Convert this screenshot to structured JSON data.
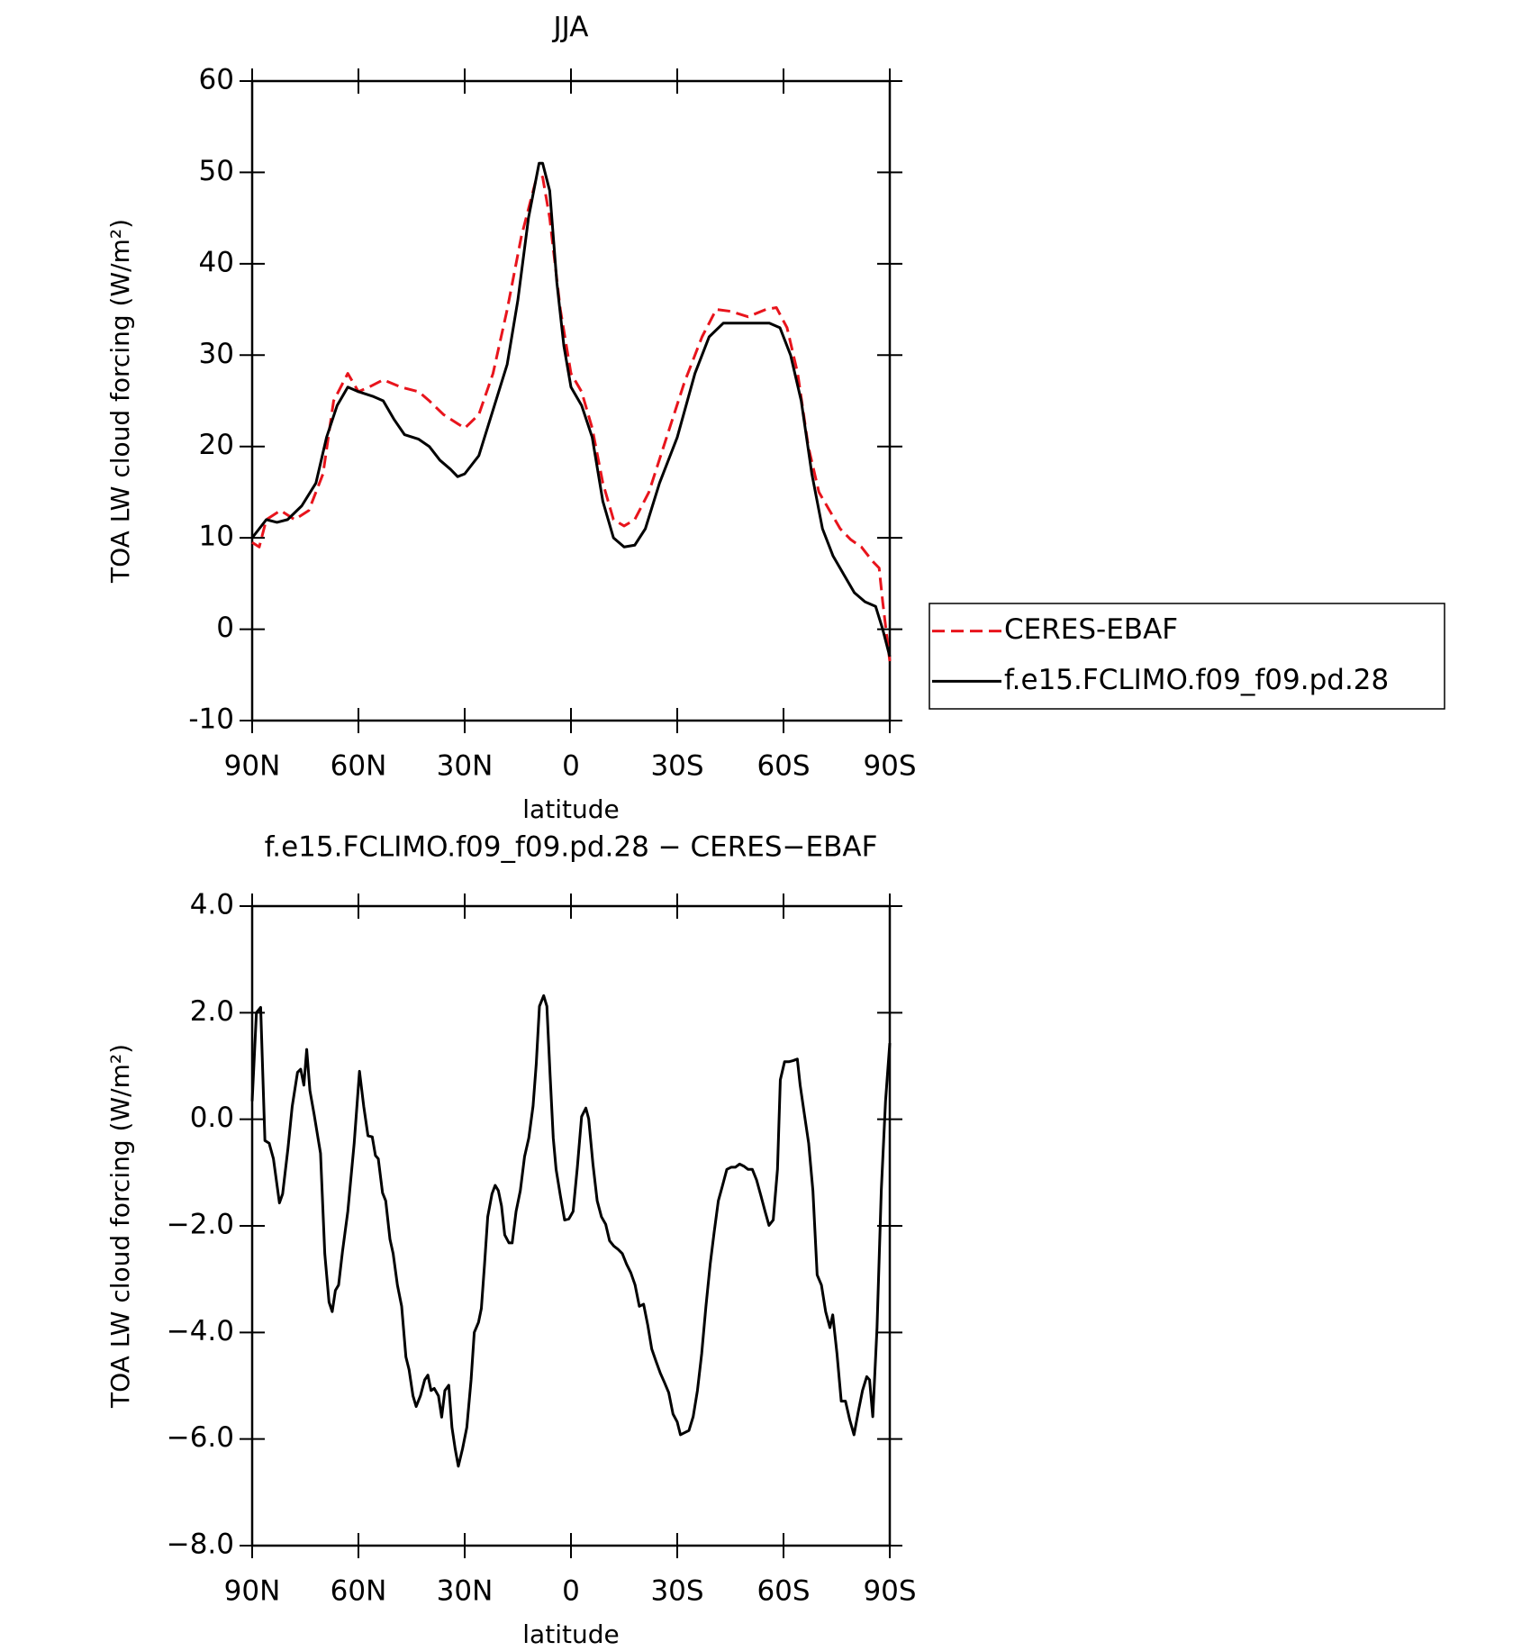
{
  "chart_data": [
    {
      "type": "line",
      "title": "JJA",
      "xlabel": "latitude",
      "ylabel": "TOA LW cloud forcing (W/m²)",
      "xlim": [
        90,
        -90
      ],
      "xticks": [
        {
          "value": 90,
          "label": "90N"
        },
        {
          "value": 60,
          "label": "60N"
        },
        {
          "value": 30,
          "label": "30N"
        },
        0,
        {
          "value": -30,
          "label": "30S"
        },
        {
          "value": -60,
          "label": "60S"
        },
        {
          "value": -90,
          "label": "90S"
        }
      ],
      "ylim": [
        -10,
        60
      ],
      "yticks": [
        -10,
        0,
        10,
        20,
        30,
        40,
        50,
        60
      ],
      "legend": "right",
      "series": [
        {
          "name": "CERES-EBAF",
          "color": "#e8141c",
          "dash": true,
          "x": [
            90,
            88,
            86,
            82,
            78,
            74,
            70,
            67,
            63,
            60,
            57,
            53,
            48,
            43,
            40,
            36,
            30,
            26,
            22,
            18,
            14,
            10,
            8,
            6,
            3,
            0,
            -3,
            -6,
            -9,
            -12,
            -15,
            -18,
            -22,
            -27,
            -32,
            -37,
            -41,
            -45,
            -50,
            -55,
            -58,
            -61,
            -64,
            -67,
            -70,
            -73,
            -76,
            -79,
            -82,
            -85,
            -87,
            -88,
            -90
          ],
          "values": [
            9.5,
            9,
            12,
            13,
            12,
            13,
            17,
            25,
            28,
            26,
            26.5,
            27.3,
            26.5,
            26,
            25,
            23.5,
            22,
            23.5,
            28,
            35,
            43,
            49,
            49.5,
            45,
            35,
            28,
            26,
            22,
            16,
            12,
            11.3,
            12,
            15,
            21,
            27,
            32,
            35,
            34.8,
            34.2,
            35,
            35.2,
            33,
            28,
            20,
            15,
            13,
            11,
            9.8,
            9,
            7.5,
            6.7,
            3,
            -3.5
          ]
        },
        {
          "name": "f.e15.FCLIMO.f09_f09.pd.28",
          "color": "#000000",
          "dash": false,
          "x": [
            90,
            88,
            86,
            83,
            80,
            76,
            72,
            69,
            66,
            63,
            60,
            56,
            53,
            50,
            47,
            43,
            40,
            37,
            34,
            32,
            30,
            26,
            22,
            18,
            15,
            12,
            9,
            8,
            6,
            4,
            2,
            0,
            -3,
            -6,
            -9,
            -12,
            -15,
            -18,
            -21,
            -25,
            -30,
            -35,
            -39,
            -43,
            -48,
            -52,
            -56,
            -59,
            -62,
            -65,
            -68,
            -71,
            -74,
            -77,
            -80,
            -83,
            -86,
            -88,
            -90
          ],
          "values": [
            10,
            11,
            12,
            11.7,
            12,
            13.5,
            16,
            21,
            24.5,
            26.5,
            26,
            25.5,
            25,
            23,
            21.3,
            20.8,
            20,
            18.5,
            17.5,
            16.7,
            17,
            19,
            24,
            29,
            36,
            45,
            51,
            51,
            48,
            38,
            31,
            26.5,
            24.5,
            21,
            14,
            10,
            9,
            9.2,
            11,
            16,
            21,
            28,
            32,
            33.5,
            33.5,
            33.5,
            33.5,
            33,
            30,
            25,
            17,
            11,
            8,
            6,
            4,
            3,
            2.5,
            0,
            -3
          ]
        }
      ]
    },
    {
      "type": "line",
      "title": "f.e15.FCLIMO.f09_f09.pd.28 − CERES−EBAF",
      "xlabel": "latitude",
      "ylabel": "TOA LW cloud forcing (W/m²)",
      "xlim": [
        90,
        -90
      ],
      "xticks": [
        {
          "value": 90,
          "label": "90N"
        },
        {
          "value": 60,
          "label": "60N"
        },
        {
          "value": 30,
          "label": "30N"
        },
        0,
        {
          "value": -30,
          "label": "30S"
        },
        {
          "value": -60,
          "label": "60S"
        },
        {
          "value": -90,
          "label": "90S"
        }
      ],
      "ylim": [
        -8,
        4
      ],
      "yticks": [
        {
          "value": -8,
          "label": "−8.0"
        },
        {
          "value": -6,
          "label": "−6.0"
        },
        {
          "value": -4,
          "label": "−4.0"
        },
        {
          "value": -2,
          "label": "−2.0"
        },
        {
          "value": 0,
          "label": "0.0"
        },
        {
          "value": 2,
          "label": "2.0"
        },
        {
          "value": 4,
          "label": "4.0"
        }
      ],
      "series": [
        {
          "color": "#000000",
          "dash": false,
          "x": [
            90,
            88.8,
            87.6,
            86.4,
            85.2,
            84,
            82.3,
            81.4,
            79.9,
            78.7,
            77.2,
            76.3,
            75.4,
            74.6,
            73.7,
            72.5,
            70.7,
            69.5,
            68.3,
            67.4,
            66.5,
            65.6,
            64.5,
            63,
            61.2,
            59.7,
            58.5,
            57.3,
            56.1,
            55.2,
            54.4,
            53.2,
            52.3,
            51.1,
            50.2,
            49,
            47.8,
            46.6,
            45.7,
            44.6,
            43.7,
            42.5,
            41.3,
            40.4,
            39.5,
            38.6,
            37.4,
            36.5,
            35.6,
            34.5,
            33.6,
            32.7,
            31.8,
            30.6,
            29.4,
            28.2,
            27.3,
            26.1,
            25.3,
            24.4,
            23.5,
            22.3,
            21.4,
            20.5,
            19.6,
            18.7,
            17.5,
            16.6,
            15.5,
            14.3,
            13.1,
            11.9,
            10.7,
            9.8,
            8.9,
            7.7,
            6.8,
            5.9,
            5,
            4.2,
            3,
            1.8,
            0.6,
            -0.6,
            -1.8,
            -3,
            -4.2,
            -5,
            -6.2,
            -7.4,
            -8.6,
            -9.8,
            -10.9,
            -12.1,
            -13.3,
            -14.5,
            -15.7,
            -16.9,
            -18.1,
            -19.3,
            -20.5,
            -21.7,
            -22.8,
            -24,
            -25.2,
            -26.4,
            -27.6,
            -28.8,
            -30,
            -30.9,
            -32.1,
            -33.3,
            -34.5,
            -35.7,
            -36.9,
            -38.1,
            -39.3,
            -40.4,
            -41.6,
            -42.8,
            -44,
            -45.2,
            -46.4,
            -47.6,
            -48.8,
            -50,
            -51.2,
            -52.4,
            -53.6,
            -54.8,
            -55.9,
            -57.1,
            -58.3,
            -59.1,
            -60.3,
            -61.5,
            -62.7,
            -63.9,
            -64.7,
            -65.9,
            -67.1,
            -68.3,
            -69.5,
            -70.7,
            -71.9,
            -73.1,
            -73.9,
            -75.1,
            -76.3,
            -77.5,
            -78.7,
            -79.9,
            -81.1,
            -82.3,
            -83.5,
            -84.3,
            -85.2,
            -86.4,
            -87.6,
            -88.8,
            -90
          ],
          "values": [
            0.34,
            2.0,
            2.1,
            -0.4,
            -0.45,
            -0.74,
            -1.57,
            -1.4,
            -0.55,
            0.24,
            0.88,
            0.94,
            0.64,
            1.31,
            0.54,
            0.09,
            -0.64,
            -2.52,
            -3.43,
            -3.61,
            -3.21,
            -3.11,
            -2.48,
            -1.73,
            -0.45,
            0.9,
            0.24,
            -0.31,
            -0.33,
            -0.68,
            -0.74,
            -1.38,
            -1.53,
            -2.25,
            -2.52,
            -3.11,
            -3.51,
            -4.46,
            -4.7,
            -5.19,
            -5.39,
            -5.19,
            -4.89,
            -4.8,
            -5.09,
            -5.05,
            -5.19,
            -5.59,
            -5.09,
            -4.99,
            -5.78,
            -6.18,
            -6.51,
            -6.18,
            -5.78,
            -4.89,
            -4.0,
            -3.81,
            -3.55,
            -2.72,
            -1.83,
            -1.4,
            -1.24,
            -1.34,
            -1.63,
            -2.17,
            -2.32,
            -2.32,
            -1.73,
            -1.34,
            -0.7,
            -0.35,
            0.25,
            1.04,
            2.12,
            2.32,
            2.12,
            0.84,
            -0.35,
            -0.94,
            -1.43,
            -1.89,
            -1.87,
            -1.73,
            -0.9,
            0.05,
            0.21,
            0.01,
            -0.84,
            -1.53,
            -1.83,
            -1.97,
            -2.28,
            -2.38,
            -2.44,
            -2.52,
            -2.72,
            -2.88,
            -3.11,
            -3.51,
            -3.47,
            -3.87,
            -4.31,
            -4.54,
            -4.76,
            -4.94,
            -5.13,
            -5.53,
            -5.68,
            -5.92,
            -5.88,
            -5.84,
            -5.58,
            -5.09,
            -4.4,
            -3.51,
            -2.72,
            -2.13,
            -1.53,
            -1.24,
            -0.94,
            -0.9,
            -0.9,
            -0.84,
            -0.88,
            -0.94,
            -0.94,
            -1.14,
            -1.43,
            -1.73,
            -1.99,
            -1.89,
            -0.94,
            0.74,
            1.08,
            1.08,
            1.1,
            1.13,
            0.64,
            0.09,
            -0.45,
            -1.34,
            -2.92,
            -3.11,
            -3.61,
            -3.91,
            -3.67,
            -4.4,
            -5.29,
            -5.29,
            -5.64,
            -5.92,
            -5.49,
            -5.09,
            -4.83,
            -4.89,
            -5.58,
            -3.91,
            -1.34,
            0.34,
            1.43
          ]
        }
      ]
    }
  ]
}
